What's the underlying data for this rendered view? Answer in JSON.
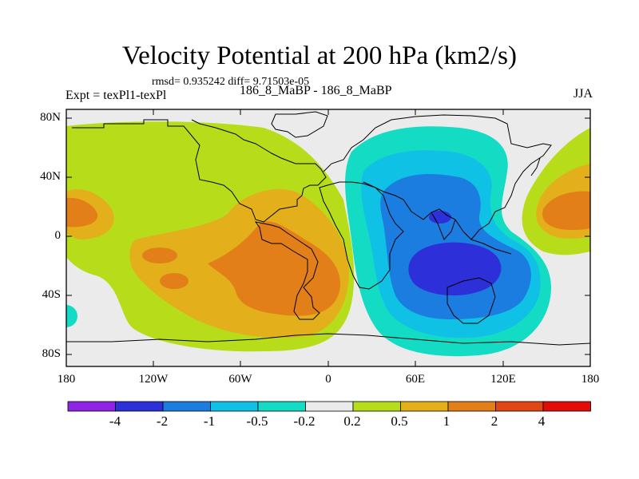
{
  "title": "Velocity Potential at 200 hPa (km2/s)",
  "stats": "rmsd= 0.935242 diff= 9.71503e-05",
  "left_label": "Expt = texPl1-texPl",
  "case_label": "186_8_MaBP - 186_8_MaBP",
  "season": "JJA",
  "lat_labels": [
    "80N",
    "40N",
    "0",
    "40S",
    "80S"
  ],
  "lon_labels": [
    "180",
    "120W",
    "60W",
    "0",
    "60E",
    "120E",
    "180"
  ],
  "colorbar": {
    "labels": [
      "-4",
      "-2",
      "-1",
      "-0.5",
      "-0.2",
      "0.2",
      "0.5",
      "1",
      "2",
      "4"
    ],
    "colors": [
      "#8e25e6",
      "#2d2fd8",
      "#1c7de0",
      "#10c1e6",
      "#14dcc4",
      "#ebebeb",
      "#b7dd1a",
      "#e3b01b",
      "#e37f18",
      "#e24612",
      "#e30a0a"
    ]
  },
  "map": {
    "lon_range": [
      -180,
      180
    ],
    "lat_range": [
      -90,
      90
    ],
    "background_color": "#ebebeb"
  }
}
